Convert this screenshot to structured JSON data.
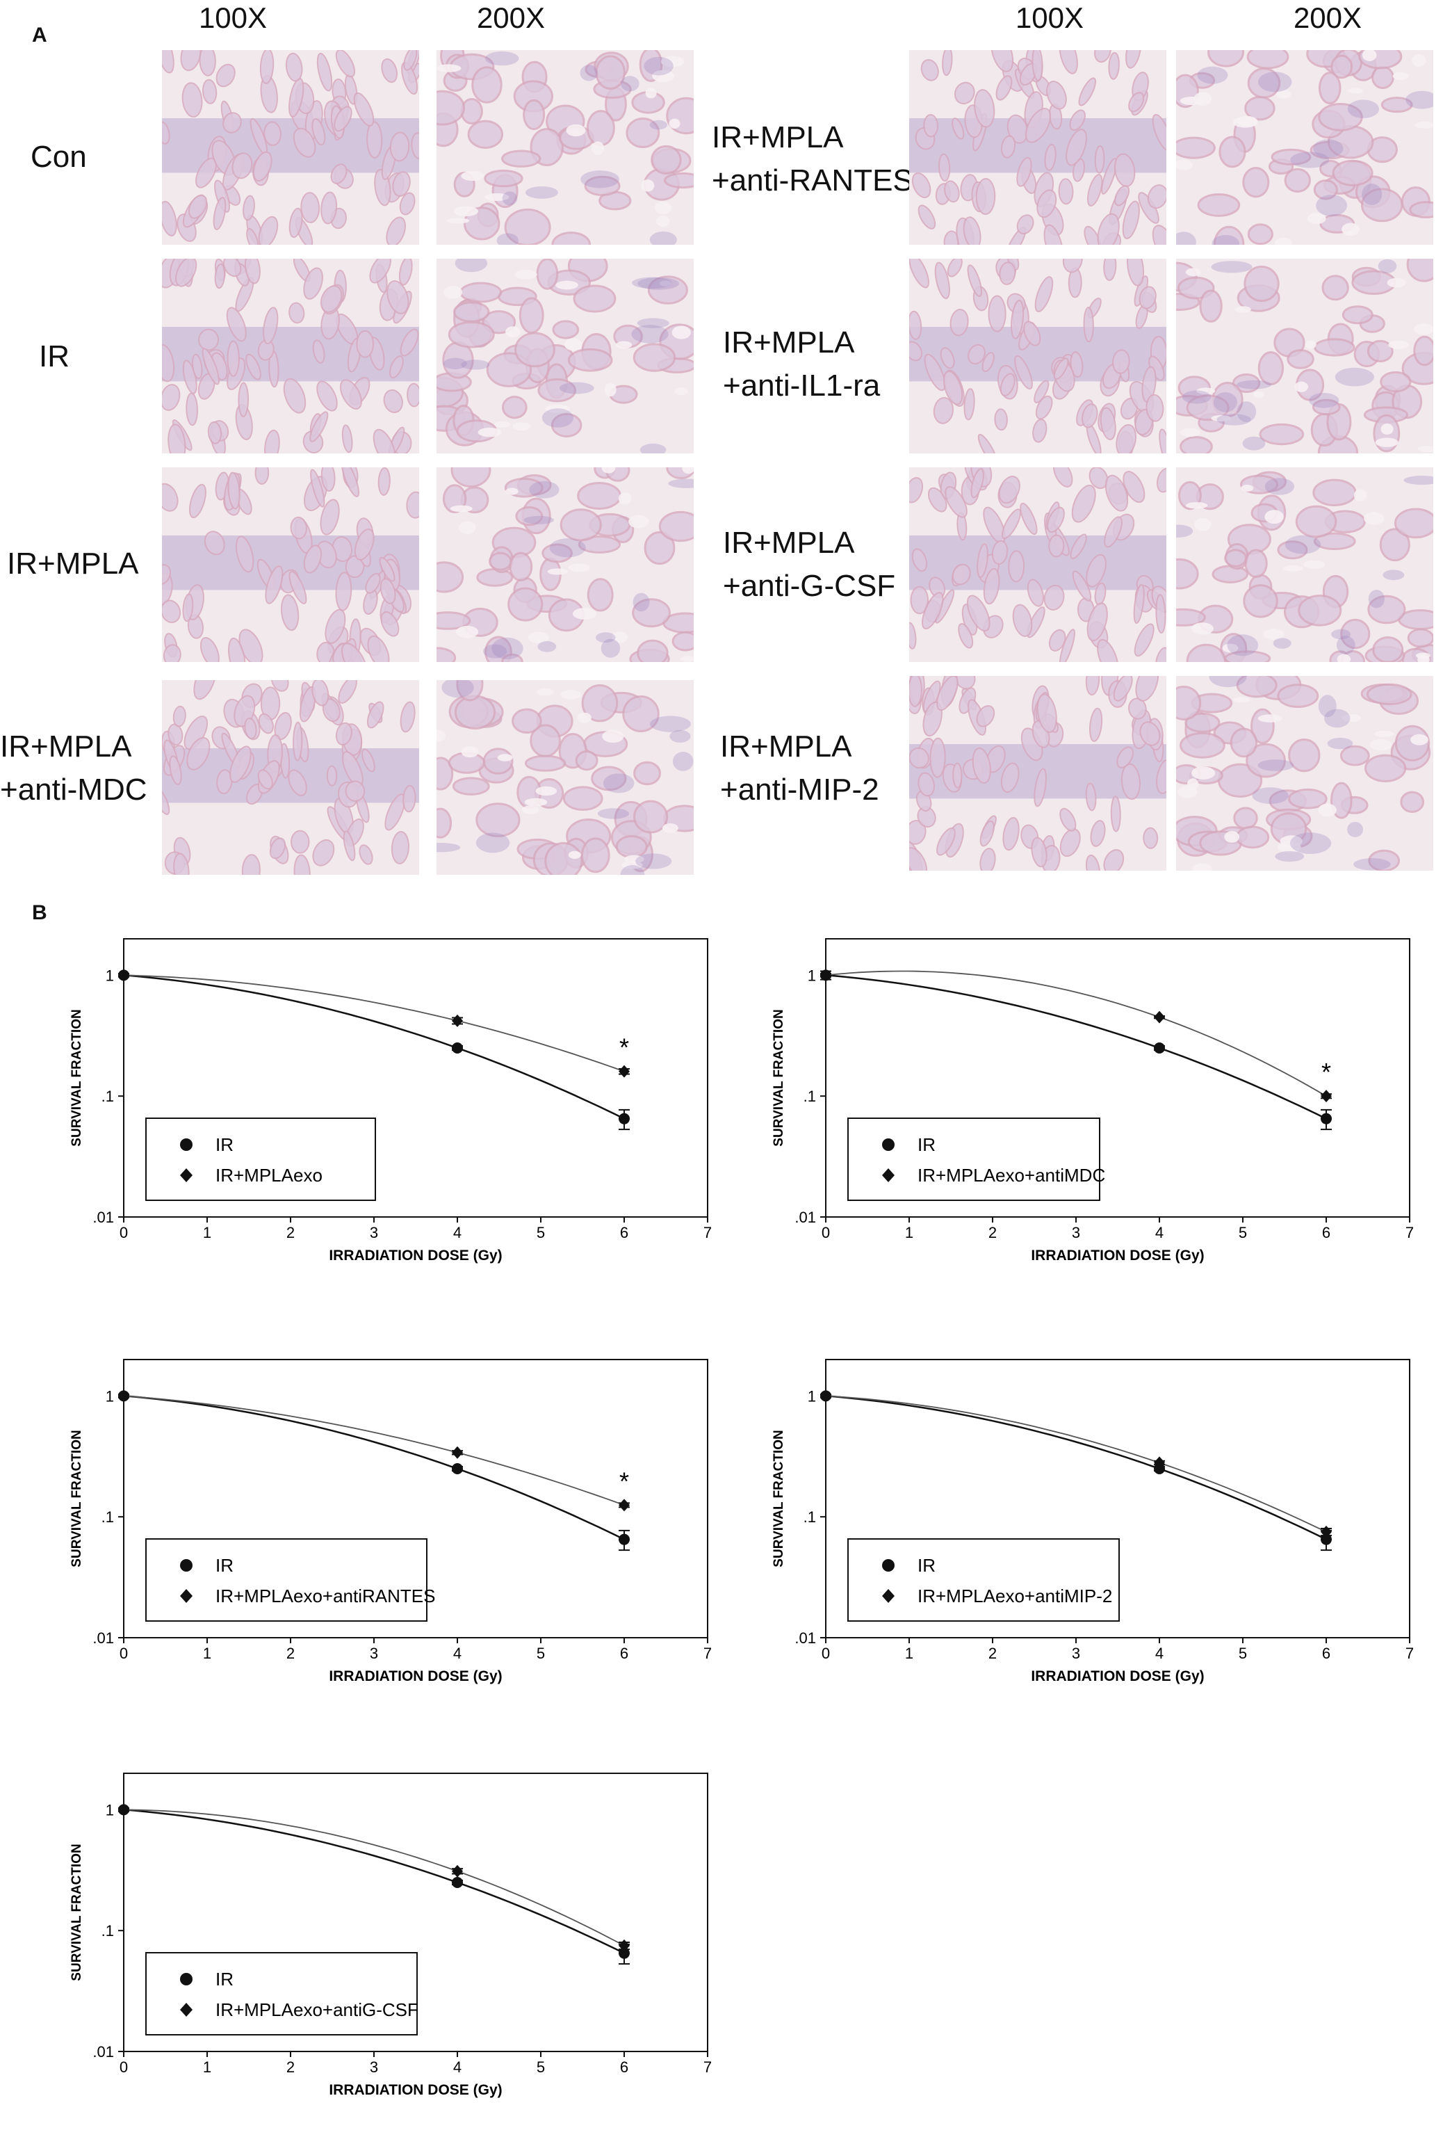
{
  "panel_a": {
    "letter": "A",
    "magnifications": [
      "100X",
      "200X"
    ],
    "left_groups": [
      {
        "lines": [
          "Con"
        ]
      },
      {
        "lines": [
          "IR"
        ]
      },
      {
        "lines": [
          "IR+MPLA"
        ]
      },
      {
        "lines": [
          "IR+MPLA",
          "+anti-MDC"
        ]
      }
    ],
    "right_groups": [
      {
        "lines": [
          "IR+MPLA",
          "+anti-RANTES"
        ]
      },
      {
        "lines": [
          "IR+MPLA",
          "+anti-IL1-ra"
        ]
      },
      {
        "lines": [
          "IR+MPLA",
          "+anti-G-CSF"
        ]
      },
      {
        "lines": [
          "IR+MPLA",
          "+anti-MIP-2"
        ]
      }
    ],
    "image_palette": {
      "background": "#f1e9ec",
      "tissue_light": "#dcc7dc",
      "tissue_pink": "#d7a9be",
      "tissue_purple": "#9a84bf",
      "lumen": "#f7f1f3"
    }
  },
  "panel_b": {
    "letter": "B"
  },
  "chart_data": [
    {
      "type": "scatter",
      "xlabel": "IRRADIATION DOSE (Gy)",
      "ylabel": "SURVIVAL FRACTION",
      "xlim": [
        0,
        7
      ],
      "ylim": [
        0.01,
        2
      ],
      "yscale": "log",
      "x_ticks": [
        "0",
        "1",
        "2",
        "3",
        "4",
        "5",
        "6",
        "7"
      ],
      "y_ticks": [
        "1",
        ".1",
        ".01"
      ],
      "legend_placement": "bottom-left",
      "series": [
        {
          "name": "IR",
          "marker": "circle",
          "x": [
            0,
            4,
            6
          ],
          "y": [
            1.0,
            0.25,
            0.065
          ],
          "err": [
            0.03,
            0.01,
            0.012
          ],
          "fit": "quadratic"
        },
        {
          "name": "IR+MPLAexo",
          "marker": "diamond",
          "x": [
            0,
            4,
            6
          ],
          "y": [
            1.0,
            0.42,
            0.16
          ],
          "err": [
            0.03,
            0.025,
            0.008
          ],
          "fit": "quadratic"
        }
      ],
      "annotations": [
        {
          "text": "*",
          "x": 6,
          "y": 0.16
        }
      ]
    },
    {
      "type": "scatter",
      "xlabel": "IRRADIATION DOSE (Gy)",
      "ylabel": "SURVIVAL FRACTION",
      "xlim": [
        0,
        7
      ],
      "ylim": [
        0.01,
        2
      ],
      "yscale": "log",
      "x_ticks": [
        "0",
        "1",
        "2",
        "3",
        "4",
        "5",
        "6",
        "7"
      ],
      "y_ticks": [
        "1",
        ".1",
        ".01"
      ],
      "legend_placement": "bottom-left",
      "series": [
        {
          "name": "IR",
          "marker": "circle",
          "x": [
            0,
            4,
            6
          ],
          "y": [
            1.0,
            0.25,
            0.065
          ],
          "err": [
            0.08,
            0.01,
            0.012
          ],
          "fit": "quadratic"
        },
        {
          "name": "IR+MPLAexo+antiMDC",
          "marker": "diamond",
          "x": [
            0,
            4,
            6
          ],
          "y": [
            1.0,
            0.45,
            0.1
          ],
          "err": [
            0.03,
            0.01,
            0.004
          ],
          "fit": "quadratic"
        }
      ],
      "annotations": [
        {
          "text": "*",
          "x": 6,
          "y": 0.1
        }
      ]
    },
    {
      "type": "scatter",
      "xlabel": "IRRADIATION DOSE (Gy)",
      "ylabel": "SURVIVAL FRACTION",
      "xlim": [
        0,
        7
      ],
      "ylim": [
        0.01,
        2
      ],
      "yscale": "log",
      "x_ticks": [
        "0",
        "1",
        "2",
        "3",
        "4",
        "5",
        "6",
        "7"
      ],
      "y_ticks": [
        "1",
        ".1",
        ".01"
      ],
      "legend_placement": "bottom-left",
      "series": [
        {
          "name": "IR",
          "marker": "circle",
          "x": [
            0,
            4,
            6
          ],
          "y": [
            1.0,
            0.25,
            0.065
          ],
          "err": [
            0.03,
            0.01,
            0.012
          ],
          "fit": "quadratic"
        },
        {
          "name": "IR+MPLAexo+antiRANTES",
          "marker": "diamond",
          "x": [
            0,
            4,
            6
          ],
          "y": [
            1.0,
            0.34,
            0.125
          ],
          "err": [
            0.03,
            0.012,
            0.005
          ],
          "fit": "quadratic"
        }
      ],
      "annotations": [
        {
          "text": "*",
          "x": 6,
          "y": 0.125
        }
      ]
    },
    {
      "type": "scatter",
      "xlabel": "IRRADIATION DOSE (Gy)",
      "ylabel": "SURVIVAL FRACTION",
      "xlim": [
        0,
        7
      ],
      "ylim": [
        0.01,
        2
      ],
      "yscale": "log",
      "x_ticks": [
        "0",
        "1",
        "2",
        "3",
        "4",
        "5",
        "6",
        "7"
      ],
      "y_ticks": [
        "1",
        ".1",
        ".01"
      ],
      "legend_placement": "bottom-left",
      "series": [
        {
          "name": "IR",
          "marker": "circle",
          "x": [
            0,
            4,
            6
          ],
          "y": [
            1.0,
            0.25,
            0.065
          ],
          "err": [
            0.03,
            0.01,
            0.012
          ],
          "fit": "quadratic"
        },
        {
          "name": "IR+MPLAexo+antiMIP-2",
          "marker": "diamond",
          "x": [
            0,
            4,
            6
          ],
          "y": [
            1.0,
            0.28,
            0.075
          ],
          "err": [
            0.03,
            0.01,
            0.005
          ],
          "fit": "quadratic"
        }
      ],
      "annotations": []
    },
    {
      "type": "scatter",
      "xlabel": "IRRADIATION DOSE (Gy)",
      "ylabel": "SURVIVAL FRACTION",
      "xlim": [
        0,
        7
      ],
      "ylim": [
        0.01,
        2
      ],
      "yscale": "log",
      "x_ticks": [
        "0",
        "1",
        "2",
        "3",
        "4",
        "5",
        "6",
        "7"
      ],
      "y_ticks": [
        "1",
        ".1",
        ".01"
      ],
      "legend_placement": "bottom-left",
      "series": [
        {
          "name": "IR",
          "marker": "circle",
          "x": [
            0,
            4,
            6
          ],
          "y": [
            1.0,
            0.25,
            0.065
          ],
          "err": [
            0.03,
            0.01,
            0.012
          ],
          "fit": "quadratic"
        },
        {
          "name": "IR+MPLAexo+antiG-CSF",
          "marker": "diamond",
          "x": [
            0,
            4,
            6
          ],
          "y": [
            1.0,
            0.31,
            0.075
          ],
          "err": [
            0.03,
            0.015,
            0.005
          ],
          "fit": "quadratic"
        }
      ],
      "annotations": []
    }
  ]
}
